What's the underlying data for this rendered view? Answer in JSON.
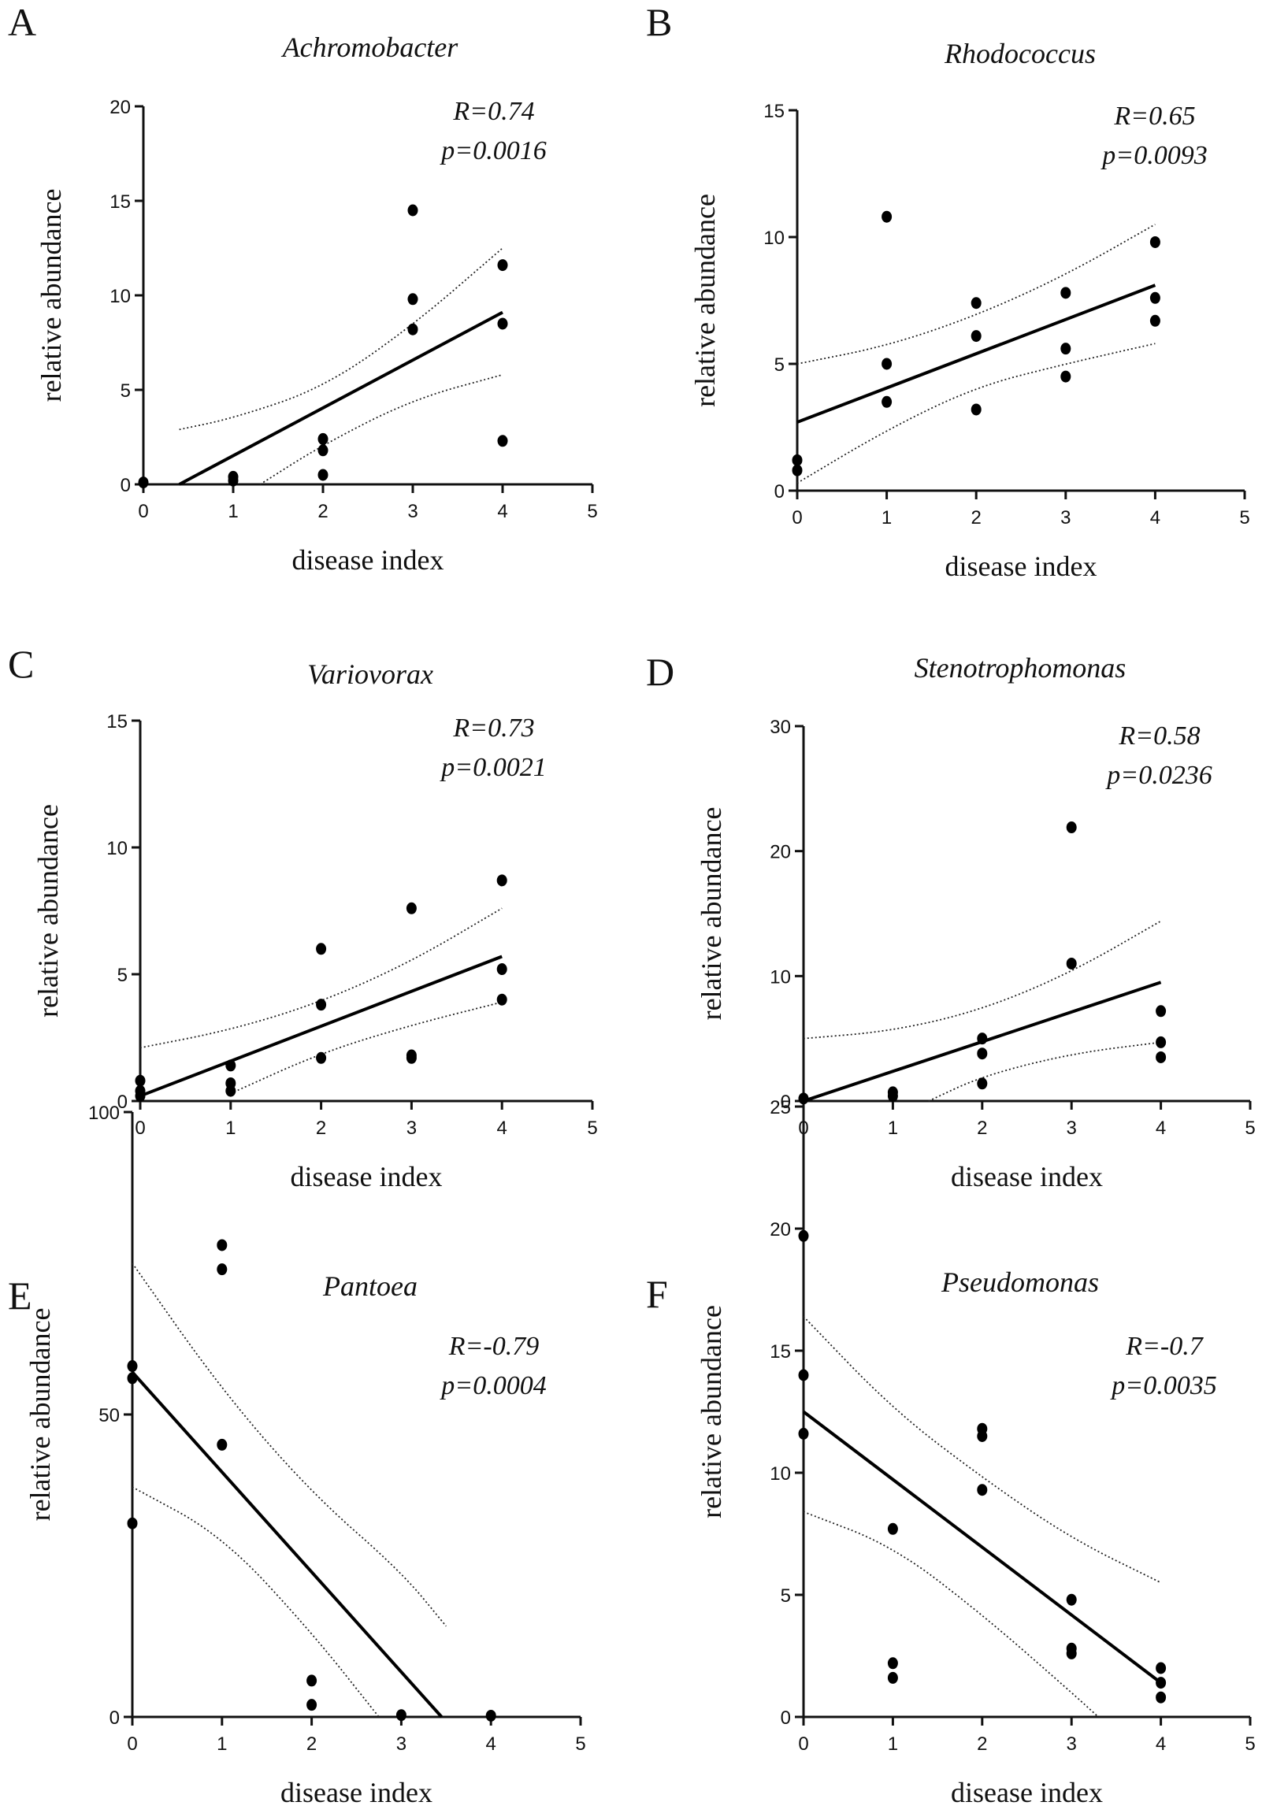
{
  "chart_data": [
    {
      "type": "scatter",
      "panel": "A",
      "title": "Achromobacter",
      "xlabel": "disease index",
      "ylabel": "relative abundance",
      "xlim": [
        0,
        5
      ],
      "ylim": [
        0,
        20
      ],
      "xticks": [
        0,
        1,
        2,
        3,
        4,
        5
      ],
      "yticks": [
        0,
        5,
        10,
        15,
        20
      ],
      "stats": {
        "r": "R=0.74",
        "p": "p=0.0016"
      },
      "points": [
        {
          "x": 0,
          "y": 0.1
        },
        {
          "x": 1,
          "y": 0.4
        },
        {
          "x": 1,
          "y": 0.2
        },
        {
          "x": 2,
          "y": 2.4
        },
        {
          "x": 2,
          "y": 1.8
        },
        {
          "x": 2,
          "y": 0.5
        },
        {
          "x": 3,
          "y": 14.5
        },
        {
          "x": 3,
          "y": 9.8
        },
        {
          "x": 3,
          "y": 8.2
        },
        {
          "x": 4,
          "y": 11.6
        },
        {
          "x": 4,
          "y": 8.5
        },
        {
          "x": 4,
          "y": 2.3
        }
      ],
      "fit": {
        "x1": 0.4,
        "y1": 0,
        "x2": 4,
        "y2": 9.1
      },
      "ci_upper": [
        {
          "x": 0.4,
          "y": 2.9
        },
        {
          "x": 1,
          "y": 3.5
        },
        {
          "x": 2,
          "y": 5.1
        },
        {
          "x": 3,
          "y": 8.4
        },
        {
          "x": 4,
          "y": 12.5
        }
      ],
      "ci_lower": [
        {
          "x": 1.3,
          "y": 0
        },
        {
          "x": 2,
          "y": 2.1
        },
        {
          "x": 3,
          "y": 4.5
        },
        {
          "x": 4,
          "y": 5.8
        }
      ]
    },
    {
      "type": "scatter",
      "panel": "B",
      "title": "Rhodococcus",
      "xlabel": "disease index",
      "ylabel": "relative abundance",
      "xlim": [
        0,
        5
      ],
      "ylim": [
        0,
        15
      ],
      "xticks": [
        0,
        1,
        2,
        3,
        4,
        5
      ],
      "yticks": [
        0,
        5,
        10,
        15
      ],
      "stats": {
        "r": "R=0.65",
        "p": "p=0.0093"
      },
      "points": [
        {
          "x": 0,
          "y": 1.2
        },
        {
          "x": 0,
          "y": 0.8
        },
        {
          "x": 1,
          "y": 10.8
        },
        {
          "x": 1,
          "y": 5.0
        },
        {
          "x": 1,
          "y": 3.5
        },
        {
          "x": 2,
          "y": 7.4
        },
        {
          "x": 2,
          "y": 6.1
        },
        {
          "x": 2,
          "y": 3.2
        },
        {
          "x": 3,
          "y": 7.8
        },
        {
          "x": 3,
          "y": 5.6
        },
        {
          "x": 3,
          "y": 4.5
        },
        {
          "x": 4,
          "y": 9.8
        },
        {
          "x": 4,
          "y": 7.6
        },
        {
          "x": 4,
          "y": 6.7
        }
      ],
      "fit": {
        "x1": 0,
        "y1": 2.7,
        "x2": 4,
        "y2": 8.1
      },
      "ci_upper": [
        {
          "x": 0,
          "y": 5.0
        },
        {
          "x": 1,
          "y": 5.7
        },
        {
          "x": 2,
          "y": 6.9
        },
        {
          "x": 3,
          "y": 8.5
        },
        {
          "x": 4,
          "y": 10.5
        }
      ],
      "ci_lower": [
        {
          "x": 0,
          "y": 0.3
        },
        {
          "x": 1,
          "y": 2.4
        },
        {
          "x": 2,
          "y": 4.1
        },
        {
          "x": 3,
          "y": 5.0
        },
        {
          "x": 4,
          "y": 5.8
        }
      ]
    },
    {
      "type": "scatter",
      "panel": "C",
      "title": "Variovorax",
      "xlabel": "disease index",
      "ylabel": "relative abundance",
      "xlim": [
        0,
        5
      ],
      "ylim": [
        0,
        15
      ],
      "xticks": [
        0,
        1,
        2,
        3,
        4,
        5
      ],
      "yticks": [
        0,
        5,
        10,
        15
      ],
      "stats": {
        "r": "R=0.73",
        "p": "p=0.0021"
      },
      "points": [
        {
          "x": 0,
          "y": 0.8
        },
        {
          "x": 0,
          "y": 0.4
        },
        {
          "x": 0,
          "y": 0.2
        },
        {
          "x": 1,
          "y": 1.4
        },
        {
          "x": 1,
          "y": 0.7
        },
        {
          "x": 1,
          "y": 0.4
        },
        {
          "x": 2,
          "y": 6.0
        },
        {
          "x": 2,
          "y": 3.8
        },
        {
          "x": 2,
          "y": 1.7
        },
        {
          "x": 3,
          "y": 7.6
        },
        {
          "x": 3,
          "y": 1.8
        },
        {
          "x": 3,
          "y": 1.7
        },
        {
          "x": 4,
          "y": 8.7
        },
        {
          "x": 4,
          "y": 5.2
        },
        {
          "x": 4,
          "y": 4.0
        }
      ],
      "fit": {
        "x1": 0,
        "y1": 0.2,
        "x2": 4,
        "y2": 5.7
      },
      "ci_upper": [
        {
          "x": 0,
          "y": 2.1
        },
        {
          "x": 1,
          "y": 2.8
        },
        {
          "x": 2,
          "y": 3.9
        },
        {
          "x": 3,
          "y": 5.5
        },
        {
          "x": 4,
          "y": 7.6
        }
      ],
      "ci_lower": [
        {
          "x": 1,
          "y": 0.3
        },
        {
          "x": 2,
          "y": 1.9
        },
        {
          "x": 3,
          "y": 3.0
        },
        {
          "x": 4,
          "y": 3.9
        }
      ]
    },
    {
      "type": "scatter",
      "panel": "D",
      "title": "Stenotrophomonas",
      "xlabel": "disease index",
      "ylabel": "relative abundance",
      "xlim": [
        0,
        5
      ],
      "ylim": [
        0,
        30
      ],
      "xticks": [
        0,
        1,
        2,
        3,
        4,
        5
      ],
      "yticks": [
        0,
        10,
        20,
        30
      ],
      "stats": {
        "r": "R=0.58",
        "p": "p=0.0236"
      },
      "points": [
        {
          "x": 0,
          "y": 0.2
        },
        {
          "x": 1,
          "y": 0.7
        },
        {
          "x": 1,
          "y": 0.4
        },
        {
          "x": 2,
          "y": 5.0
        },
        {
          "x": 2,
          "y": 3.8
        },
        {
          "x": 2,
          "y": 1.4
        },
        {
          "x": 3,
          "y": 21.9
        },
        {
          "x": 3,
          "y": 11.0
        },
        {
          "x": 4,
          "y": 7.2
        },
        {
          "x": 4,
          "y": 4.7
        },
        {
          "x": 4,
          "y": 3.5
        }
      ],
      "fit": {
        "x1": 0,
        "y1": 0,
        "x2": 4,
        "y2": 9.5
      },
      "ci_upper": [
        {
          "x": 0,
          "y": 5.0
        },
        {
          "x": 1,
          "y": 5.6
        },
        {
          "x": 2,
          "y": 7.3
        },
        {
          "x": 3,
          "y": 10.3
        },
        {
          "x": 4,
          "y": 14.4
        }
      ],
      "ci_lower": [
        {
          "x": 1.4,
          "y": 0
        },
        {
          "x": 2,
          "y": 2.0
        },
        {
          "x": 3,
          "y": 3.8
        },
        {
          "x": 4,
          "y": 4.7
        }
      ]
    },
    {
      "type": "scatter",
      "panel": "E",
      "title": "Pantoea",
      "xlabel": "disease index",
      "ylabel": "relative abundance",
      "xlim": [
        0,
        5
      ],
      "ylim": [
        0,
        100
      ],
      "xticks": [
        0,
        1,
        2,
        3,
        4,
        5
      ],
      "yticks": [
        0,
        50,
        100
      ],
      "stats": {
        "r": "R=-0.79",
        "p": "p=0.0004"
      },
      "points": [
        {
          "x": 0,
          "y": 58
        },
        {
          "x": 0,
          "y": 56
        },
        {
          "x": 0,
          "y": 32
        },
        {
          "x": 1,
          "y": 78
        },
        {
          "x": 1,
          "y": 74
        },
        {
          "x": 1,
          "y": 45
        },
        {
          "x": 2,
          "y": 6
        },
        {
          "x": 2,
          "y": 2
        },
        {
          "x": 3,
          "y": 0.3
        },
        {
          "x": 4,
          "y": 0.2
        }
      ],
      "fit": {
        "x1": 0,
        "y1": 57,
        "x2": 3.45,
        "y2": 0
      },
      "ci_upper": [
        {
          "x": 0,
          "y": 75
        },
        {
          "x": 1,
          "y": 54
        },
        {
          "x": 2,
          "y": 37
        },
        {
          "x": 3,
          "y": 24
        },
        {
          "x": 3.5,
          "y": 15
        }
      ],
      "ci_lower": [
        {
          "x": 0,
          "y": 38
        },
        {
          "x": 1,
          "y": 30
        },
        {
          "x": 2,
          "y": 14
        },
        {
          "x": 2.75,
          "y": 0
        }
      ]
    },
    {
      "type": "scatter",
      "panel": "F",
      "title": "Pseudomonas",
      "xlabel": "disease index",
      "ylabel": "relative abundance",
      "xlim": [
        0,
        5
      ],
      "ylim": [
        0,
        25
      ],
      "xticks": [
        0,
        1,
        2,
        3,
        4,
        5
      ],
      "yticks": [
        0,
        5,
        10,
        15,
        20,
        25
      ],
      "stats": {
        "r": "R=-0.7",
        "p": "p=0.0035"
      },
      "points": [
        {
          "x": 0,
          "y": 19.7
        },
        {
          "x": 0,
          "y": 14.0
        },
        {
          "x": 0,
          "y": 11.6
        },
        {
          "x": 1,
          "y": 7.7
        },
        {
          "x": 1,
          "y": 2.2
        },
        {
          "x": 1,
          "y": 1.6
        },
        {
          "x": 2,
          "y": 11.8
        },
        {
          "x": 2,
          "y": 11.5
        },
        {
          "x": 2,
          "y": 9.3
        },
        {
          "x": 3,
          "y": 4.8
        },
        {
          "x": 3,
          "y": 2.8
        },
        {
          "x": 3,
          "y": 2.6
        },
        {
          "x": 4,
          "y": 2.0
        },
        {
          "x": 4,
          "y": 1.4
        },
        {
          "x": 4,
          "y": 0.8
        }
      ],
      "fit": {
        "x1": 0,
        "y1": 12.5,
        "x2": 4,
        "y2": 1.4
      },
      "ci_upper": [
        {
          "x": 0,
          "y": 16.4
        },
        {
          "x": 1,
          "y": 12.6
        },
        {
          "x": 2,
          "y": 9.8
        },
        {
          "x": 3,
          "y": 7.3
        },
        {
          "x": 4,
          "y": 5.5
        }
      ],
      "ci_lower": [
        {
          "x": 0,
          "y": 8.4
        },
        {
          "x": 1,
          "y": 7.0
        },
        {
          "x": 2,
          "y": 4.2
        },
        {
          "x": 3,
          "y": 1.0
        },
        {
          "x": 3.3,
          "y": 0
        }
      ]
    }
  ]
}
